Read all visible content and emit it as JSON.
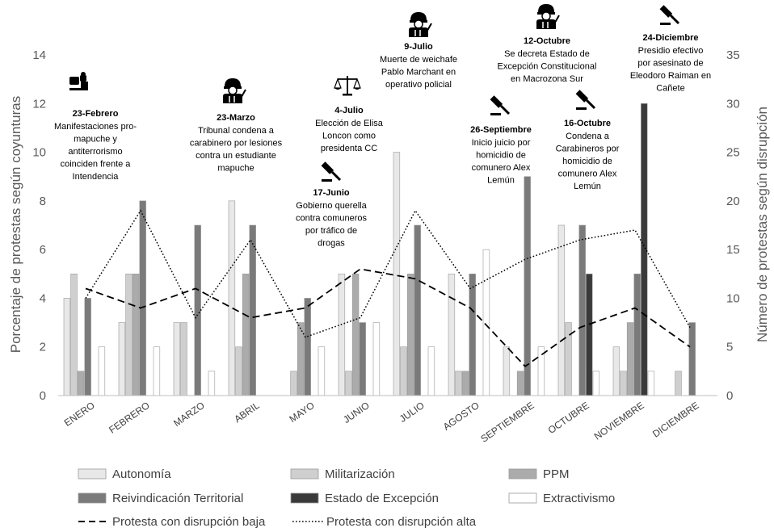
{
  "chart_data": {
    "type": "bar",
    "categories": [
      "ENERO",
      "FEBRERO",
      "MARZO",
      "ABRIL",
      "MAYO",
      "JUNIO",
      "JULIO",
      "AGOSTO",
      "SEPTIEMBRE",
      "OCTUBRE",
      "NOVIEMBRE",
      "DICIEMBRE"
    ],
    "ylabel": "Porcentaje de protestas según coyunturas",
    "y2label": "Número de protestas según disrupción",
    "ylim": [
      0,
      14
    ],
    "y2lim": [
      0,
      35
    ],
    "yticks": [
      "0",
      "2",
      "4",
      "6",
      "8",
      "10",
      "12",
      "14"
    ],
    "y2ticks": [
      "0",
      "5",
      "10",
      "15",
      "20",
      "25",
      "30",
      "35"
    ],
    "series": [
      {
        "name": "Autonomía",
        "kind": "bar",
        "color": "#e8e8e8",
        "values": [
          4,
          3,
          3,
          8,
          0,
          5,
          10,
          5,
          2,
          7,
          2,
          0
        ]
      },
      {
        "name": "Militarización",
        "kind": "bar",
        "color": "#cfcfcf",
        "values": [
          5,
          5,
          3,
          2,
          1,
          1,
          2,
          1,
          0,
          3,
          1,
          1
        ]
      },
      {
        "name": "PPM",
        "kind": "bar",
        "color": "#ababab",
        "values": [
          1,
          5,
          0,
          5,
          3,
          5,
          5,
          1,
          1,
          0,
          3,
          0
        ]
      },
      {
        "name": "Reivindicación Territorial",
        "kind": "bar",
        "color": "#7a7a7a",
        "values": [
          4,
          8,
          7,
          7,
          4,
          3,
          7,
          5,
          9,
          7,
          5,
          3
        ]
      },
      {
        "name": "Estado de Excepción",
        "kind": "bar",
        "color": "#3a3a3a",
        "values": [
          0,
          0,
          0,
          0,
          0,
          0,
          0,
          0,
          0,
          5,
          12,
          0
        ]
      },
      {
        "name": "Extractivismo",
        "kind": "bar",
        "color": "#ffffff",
        "values": [
          2,
          2,
          1,
          0,
          2,
          3,
          2,
          6,
          2,
          1,
          1,
          0
        ]
      },
      {
        "name": "Protesta con disrupción baja",
        "kind": "line",
        "dash": "dashed",
        "axis": "right",
        "values": [
          11,
          9,
          11,
          8,
          9,
          13,
          12,
          9,
          3,
          7,
          9,
          5
        ]
      },
      {
        "name": "Protesta con disrupción alta",
        "kind": "line",
        "dash": "dotted",
        "axis": "right",
        "values": [
          10,
          19,
          8,
          16,
          6,
          8,
          19,
          11,
          14,
          16,
          17,
          7
        ]
      }
    ],
    "annotations": [
      {
        "icon": "binoculars-icon",
        "date": "23-Febrero",
        "text": [
          "Manifestaciones pro-",
          "mapuche y",
          "antiterrorismo",
          "coinciden frente a",
          "Intendencia"
        ]
      },
      {
        "icon": "police-officer-icon",
        "date": "23-Marzo",
        "text": [
          "Tribunal condena a",
          "carabinero por lesiones",
          "contra un estudiante",
          "mapuche"
        ]
      },
      {
        "icon": "scales-icon",
        "date": "4-Julio",
        "text": [
          "Elección de Elisa",
          "Loncon como",
          "presidenta CC"
        ]
      },
      {
        "icon": "gavel-icon",
        "date": "17-Junio",
        "text": [
          "Gobierno querella",
          "contra comuneros",
          "por tráfico de",
          "drogas"
        ]
      },
      {
        "icon": "police-officer-icon",
        "date": "9-Julio",
        "text": [
          "Muerte de weichafe",
          "Pablo Marchant en",
          "operativo policial"
        ]
      },
      {
        "icon": "gavel-icon",
        "date": "26-Septiembre",
        "text": [
          "Inicio juicio por",
          "homicidio de",
          "comunero Alex",
          "Lemún"
        ]
      },
      {
        "icon": "police-officer-icon",
        "date": "12-Octubre",
        "text": [
          "Se decreta Estado de",
          "Excepción Constitucional",
          "en Macrozona Sur"
        ]
      },
      {
        "icon": "gavel-icon",
        "date": "16-Octubre",
        "text": [
          "Condena a",
          "Carabineros por",
          "homicidio de",
          "comunero Alex",
          "Lemún"
        ]
      },
      {
        "icon": "gavel-icon",
        "date": "24-Diciembre",
        "text": [
          "Presidio efectivo",
          "por asesinato de",
          "Eleodoro Raiman en",
          "Cañete"
        ]
      }
    ],
    "legend_position": "bottom",
    "grid": false
  }
}
